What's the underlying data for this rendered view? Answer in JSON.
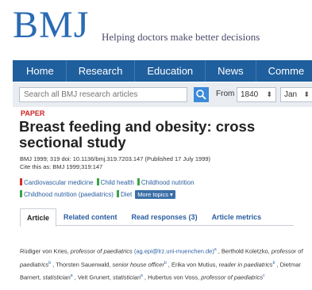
{
  "masthead": {
    "logo": "BMJ",
    "tagline": "Helping doctors make better decisions"
  },
  "nav": {
    "items": [
      "Home",
      "Research",
      "Education",
      "News",
      "Comme"
    ]
  },
  "search": {
    "placeholder": "Search all BMJ research articles",
    "from_label": "From",
    "year": "1840",
    "month": "Jan"
  },
  "article": {
    "type": "PAPER",
    "title": "Breast feeding and obesity: cross sectional study",
    "citation": "BMJ 1999; 319 doi: 10.1136/bmj.319.7203.147 (Published 17 July 1999)",
    "cite_this": "Cite this as: BMJ 1999;319:147",
    "topics": [
      {
        "label": "Cardiovascular medicine",
        "color": "#d0312d"
      },
      {
        "label": "Child health",
        "color": "#3aa447"
      },
      {
        "label": "Childhood nutrition",
        "color": "#3aa447"
      },
      {
        "label": "Childhood nutrition (paediatrics)",
        "color": "#3aa447"
      },
      {
        "label": "Diet",
        "color": "#3aa447"
      }
    ],
    "more_topics": "More topics ▾"
  },
  "tabs": [
    {
      "label": "Article",
      "active": true
    },
    {
      "label": "Related content",
      "active": false
    },
    {
      "label": "Read responses (3)",
      "active": false
    },
    {
      "label": "Article metrics",
      "active": false
    }
  ],
  "authors": [
    {
      "name": "Rüdiger von Kries",
      "role": "professor of paediatrics",
      "email": "(ag.epi@lrz.uni-muenchen.de)",
      "sup": "a"
    },
    {
      "name": "Berthold Koletzko",
      "role": "professor of paediatrics",
      "sup": "b"
    },
    {
      "name": "Thorsten Sauerwald",
      "role": "senior house officer",
      "sup": "b"
    },
    {
      "name": "Erika von Mutius",
      "role": "reader in paediatrics",
      "sup": "b"
    },
    {
      "name": "Dietmar Barnert",
      "role": "statistician",
      "sup": "a"
    },
    {
      "name": "Veit Grunert",
      "role": "statistician",
      "sup": "a"
    },
    {
      "name": "Hubertus von Voss",
      "role": "professor of paediatrics",
      "sup": "c"
    }
  ],
  "colors": {
    "brand": "#2a6ab5",
    "nav": "#1f5f9d",
    "link": "#2a5ea0",
    "paper_label": "#cc2222"
  }
}
